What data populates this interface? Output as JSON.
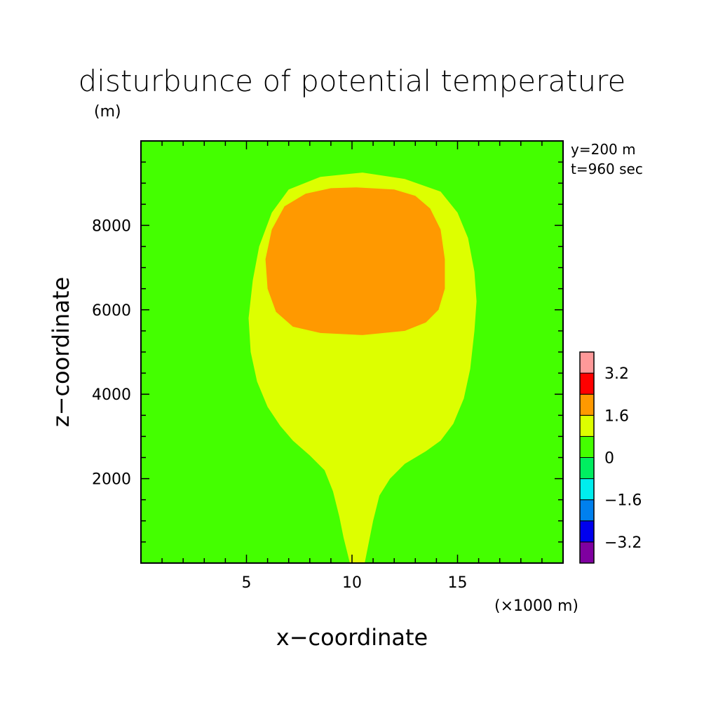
{
  "chart_data": {
    "type": "heatmap",
    "title": "disturbunce of potential temperature",
    "units": "(m)",
    "xlabel": "x−coordinate",
    "ylabel": "z−coordinate",
    "x_unit_note": "(×1000 m)",
    "annotations": [
      "y=200 m",
      "t=960 sec"
    ],
    "xlim": [
      0,
      20
    ],
    "ylim": [
      0,
      10000
    ],
    "x_major_ticks": [
      {
        "value": 5,
        "label": "5"
      },
      {
        "value": 10,
        "label": "10"
      },
      {
        "value": 15,
        "label": "15"
      }
    ],
    "y_major_ticks": [
      {
        "value": 2000,
        "label": "2000"
      },
      {
        "value": 4000,
        "label": "4000"
      },
      {
        "value": 6000,
        "label": "6000"
      },
      {
        "value": 8000,
        "label": "8000"
      }
    ],
    "colorbar": {
      "levels": [
        {
          "range": [
            -4.0,
            -3.2
          ],
          "color": "#7f00a0"
        },
        {
          "range": [
            -3.2,
            -2.4
          ],
          "color": "#0000ee"
        },
        {
          "range": [
            -2.4,
            -1.6
          ],
          "color": "#0080ee"
        },
        {
          "range": [
            -1.6,
            -0.8
          ],
          "color": "#00eeee"
        },
        {
          "range": [
            -0.8,
            0.0
          ],
          "color": "#00ee60"
        },
        {
          "range": [
            0.0,
            0.8
          ],
          "color": "#44ff00"
        },
        {
          "range": [
            0.8,
            1.6
          ],
          "color": "#ddff00"
        },
        {
          "range": [
            1.6,
            2.4
          ],
          "color": "#ff9900"
        },
        {
          "range": [
            2.4,
            3.2
          ],
          "color": "#ff0000"
        },
        {
          "range": [
            3.2,
            4.0
          ],
          "color": "#ff9999"
        }
      ],
      "tick_labels": [
        {
          "value": 3.2,
          "label": "3.2"
        },
        {
          "value": 1.6,
          "label": "1.6"
        },
        {
          "value": 0.0,
          "label": "0"
        },
        {
          "value": -1.6,
          "label": "−1.6"
        },
        {
          "value": -3.2,
          "label": "−3.2"
        }
      ]
    },
    "background_level": {
      "range": [
        0.0,
        0.8
      ],
      "color": "#44ff00"
    },
    "contour_regions": [
      {
        "level": "0.8 to 1.6",
        "color": "#ddff00",
        "outline": [
          [
            9.9,
            0
          ],
          [
            10.6,
            0
          ],
          [
            10.8,
            500
          ],
          [
            11.0,
            1000
          ],
          [
            11.3,
            1600
          ],
          [
            11.8,
            2000
          ],
          [
            12.5,
            2350
          ],
          [
            13.5,
            2650
          ],
          [
            14.2,
            2900
          ],
          [
            14.8,
            3300
          ],
          [
            15.3,
            3900
          ],
          [
            15.6,
            4600
          ],
          [
            15.8,
            5500
          ],
          [
            15.9,
            6200
          ],
          [
            15.8,
            6900
          ],
          [
            15.5,
            7700
          ],
          [
            15.0,
            8300
          ],
          [
            14.2,
            8800
          ],
          [
            12.5,
            9100
          ],
          [
            10.5,
            9250
          ],
          [
            8.5,
            9150
          ],
          [
            7.0,
            8850
          ],
          [
            6.2,
            8300
          ],
          [
            5.6,
            7500
          ],
          [
            5.3,
            6700
          ],
          [
            5.1,
            5800
          ],
          [
            5.2,
            5000
          ],
          [
            5.5,
            4300
          ],
          [
            6.0,
            3700
          ],
          [
            6.6,
            3250
          ],
          [
            7.2,
            2900
          ],
          [
            8.0,
            2550
          ],
          [
            8.7,
            2200
          ],
          [
            9.1,
            1700
          ],
          [
            9.4,
            1100
          ],
          [
            9.6,
            600
          ],
          [
            9.9,
            0
          ]
        ]
      },
      {
        "level": "1.6 to 2.4",
        "color": "#ff9900",
        "outline": [
          [
            10.2,
            8900
          ],
          [
            12.0,
            8850
          ],
          [
            13.0,
            8700
          ],
          [
            13.7,
            8400
          ],
          [
            14.2,
            7900
          ],
          [
            14.4,
            7200
          ],
          [
            14.4,
            6500
          ],
          [
            14.1,
            6000
          ],
          [
            13.5,
            5700
          ],
          [
            12.5,
            5500
          ],
          [
            10.5,
            5400
          ],
          [
            8.5,
            5450
          ],
          [
            7.2,
            5600
          ],
          [
            6.4,
            5950
          ],
          [
            6.0,
            6500
          ],
          [
            5.9,
            7200
          ],
          [
            6.2,
            7900
          ],
          [
            6.8,
            8450
          ],
          [
            7.8,
            8750
          ],
          [
            9.0,
            8880
          ],
          [
            10.2,
            8900
          ]
        ]
      }
    ]
  }
}
